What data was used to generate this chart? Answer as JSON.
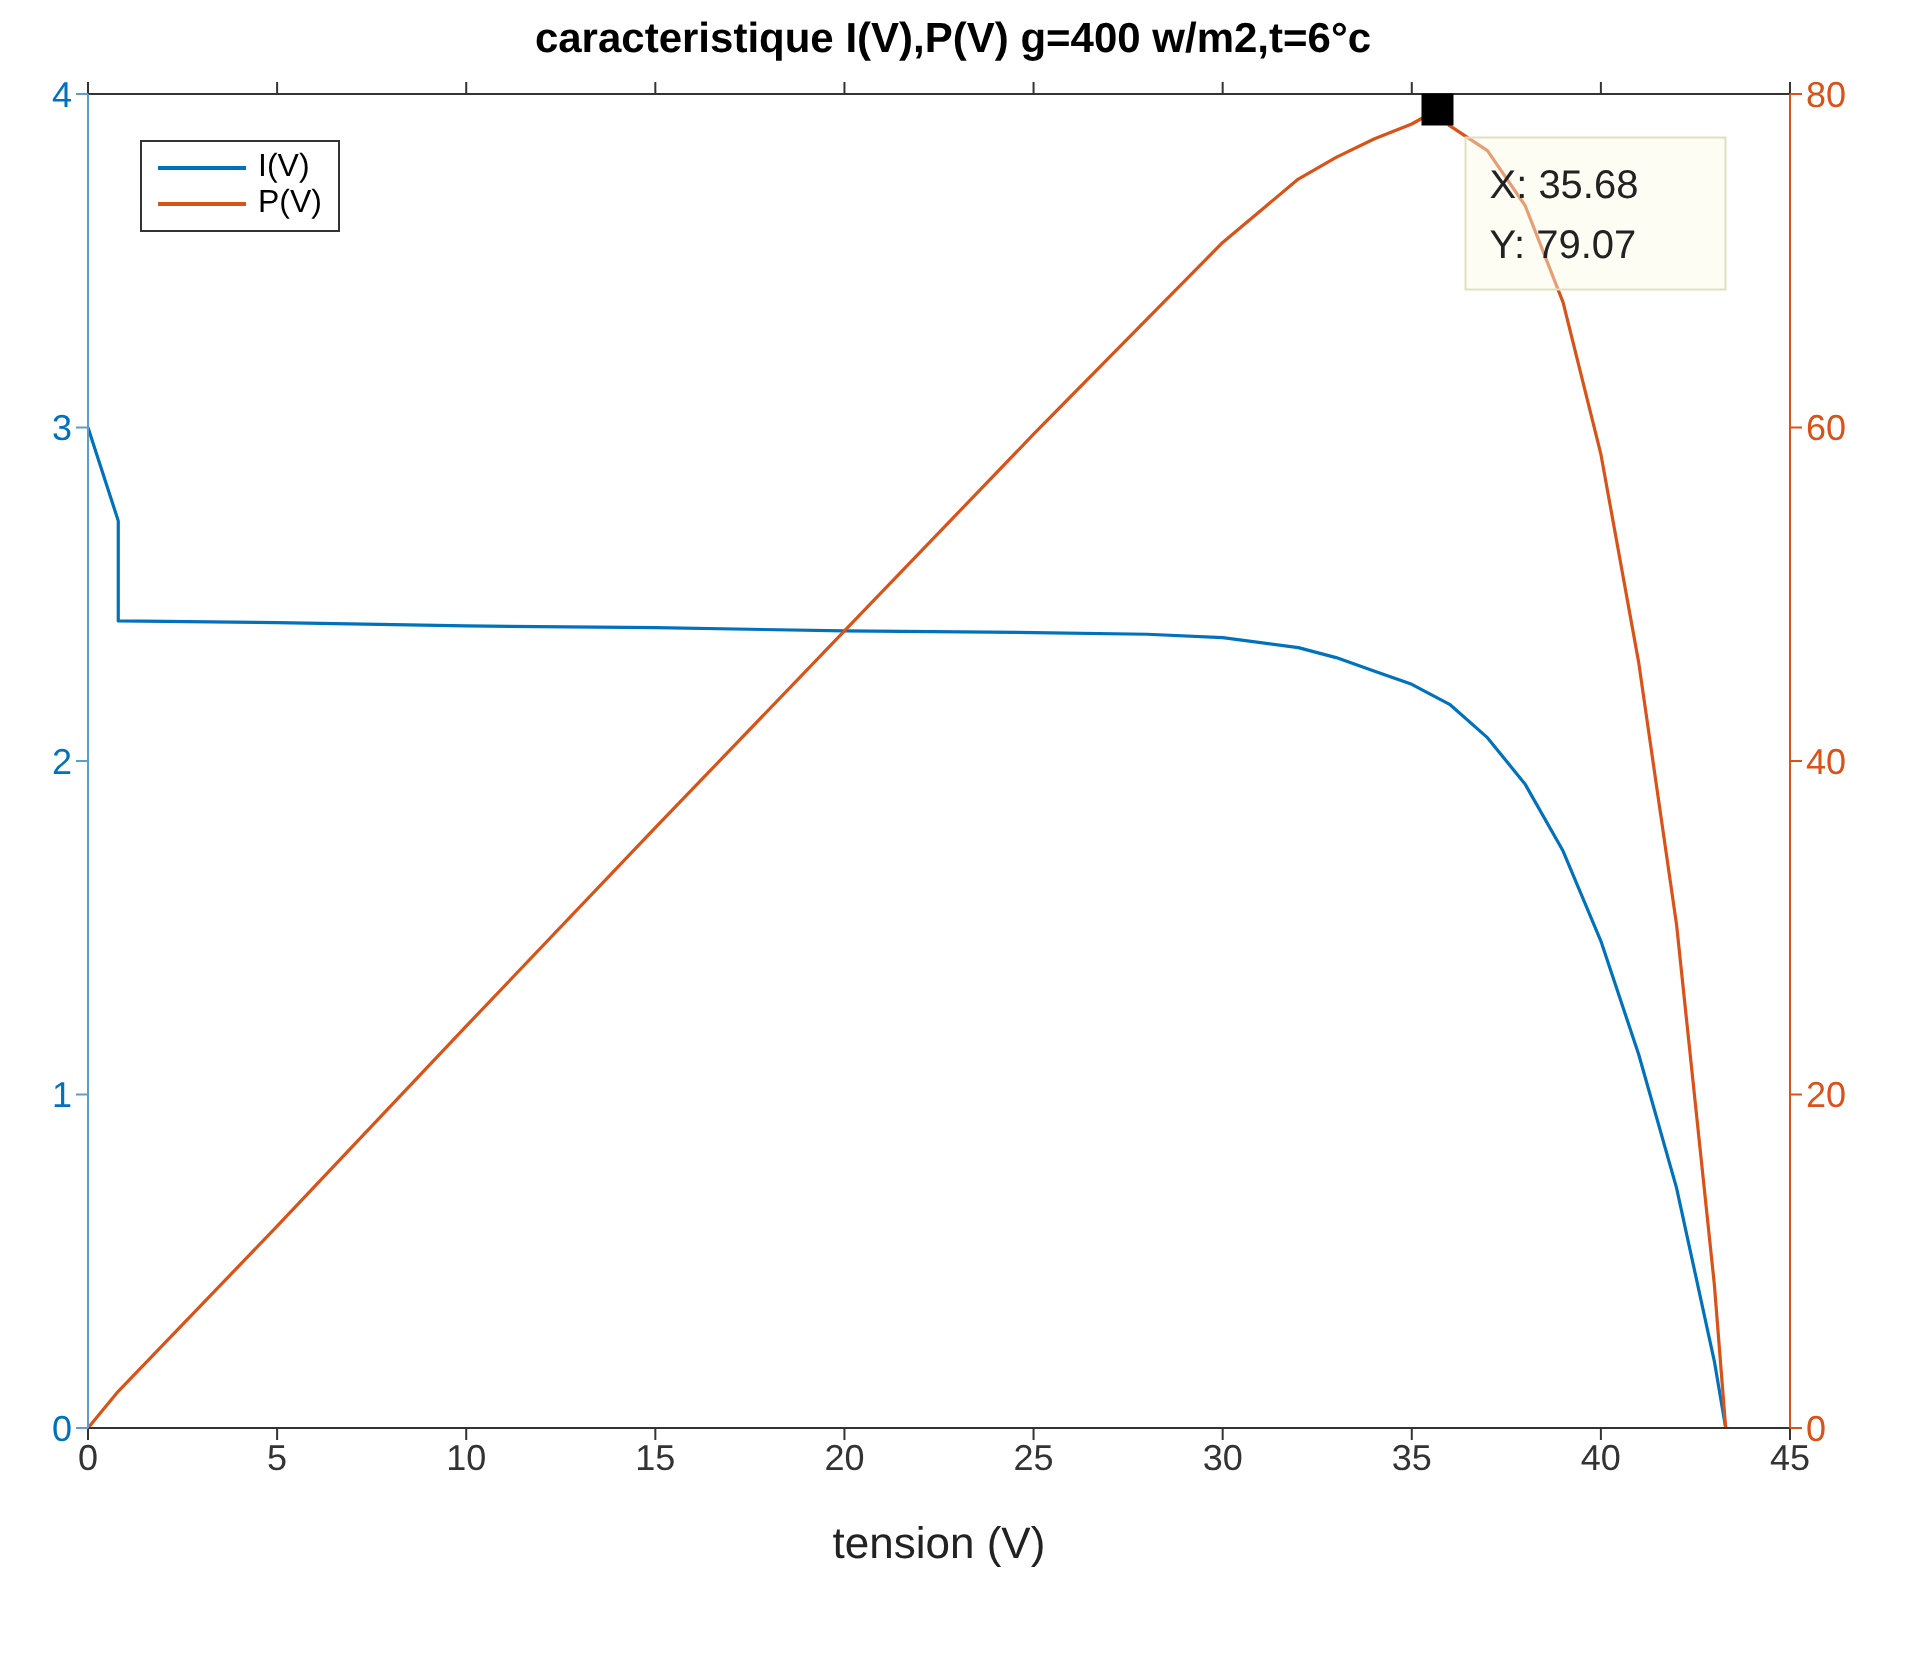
{
  "chart_data": {
    "type": "line",
    "title": "caracteristique I(V),P(V) g=400 w/m2,t=6°c",
    "xlabel": "tension (V)",
    "xlim": [
      0,
      45
    ],
    "xticks": [
      0,
      5,
      10,
      15,
      20,
      25,
      30,
      35,
      40,
      45
    ],
    "ylim": [
      0,
      4
    ],
    "yticks": [
      0,
      1,
      2,
      3,
      4
    ],
    "y2lim": [
      0,
      80
    ],
    "y2ticks": [
      0,
      20,
      40,
      60,
      80
    ],
    "legend": "top left",
    "marker": "none",
    "line_style": "solid",
    "series": [
      {
        "name": "I(V)",
        "color": "#0072bd",
        "x": [
          0,
          0.8,
          0.8,
          5,
          10,
          15,
          20,
          25,
          28,
          30,
          32,
          33,
          34,
          35,
          36,
          37,
          38,
          39,
          40,
          41,
          42,
          43,
          43.3
        ],
        "values": [
          3.0,
          2.72,
          2.42,
          2.415,
          2.405,
          2.4,
          2.39,
          2.385,
          2.38,
          2.37,
          2.34,
          2.31,
          2.27,
          2.23,
          2.17,
          2.07,
          1.93,
          1.73,
          1.46,
          1.12,
          0.72,
          0.2,
          0
        ]
      },
      {
        "name": "P(V)",
        "color": "#d95319",
        "axis": "y2",
        "x": [
          0,
          0.8,
          5,
          10,
          15,
          20,
          25,
          30,
          32,
          33,
          34,
          35,
          35.68,
          36,
          37,
          38,
          39,
          40,
          41,
          42,
          43,
          43.3
        ],
        "values": [
          0,
          2.2,
          12.1,
          24.1,
          36,
          47.8,
          59.6,
          71.1,
          74.9,
          76.2,
          77.3,
          78.2,
          79.07,
          78.1,
          76.6,
          73.3,
          67.5,
          58.4,
          45.9,
          30.2,
          8.6,
          0
        ]
      }
    ],
    "annotations": [
      "X: 35.68\nY: 79.07"
    ]
  }
}
